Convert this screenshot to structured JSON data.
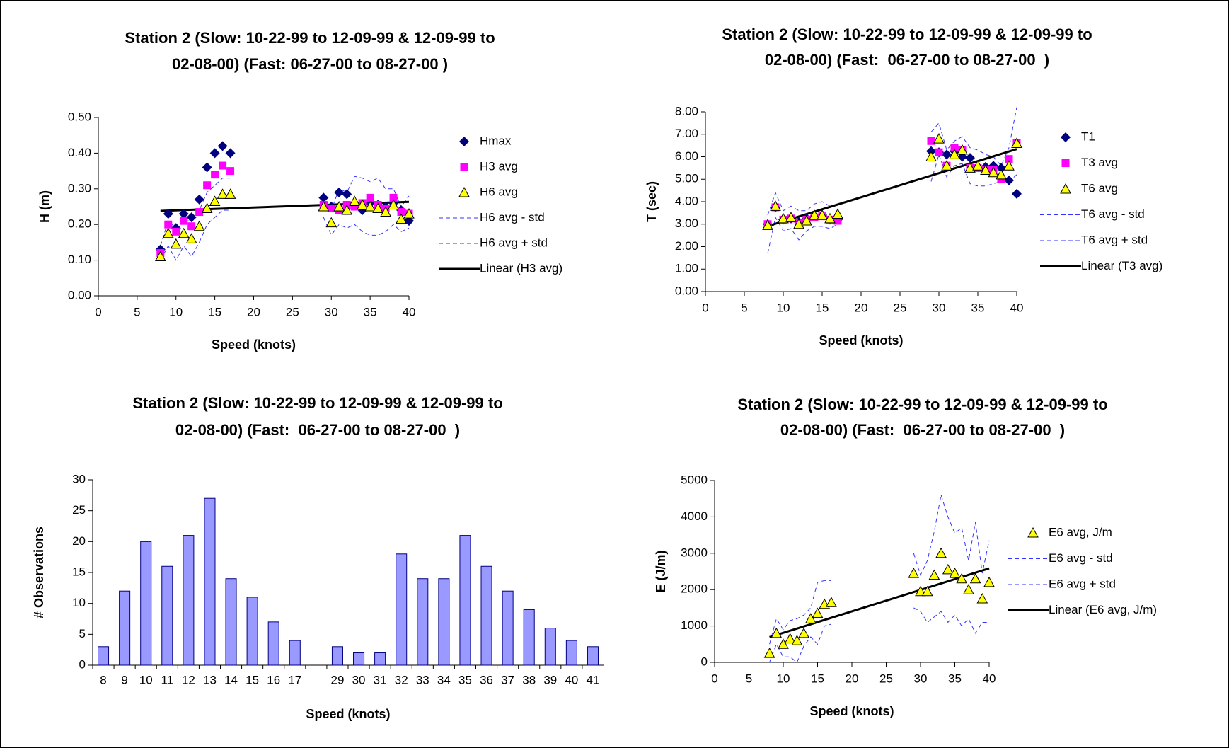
{
  "chart_data": [
    {
      "type": "scatter",
      "title": [
        "Station 2 (Slow: 10-22-99 to 12-09-99 & 12-09-99 to",
        "02-08-00) (Fast: 06-27-00 to 08-27-00 )"
      ],
      "x_label": "Speed (knots)",
      "y_label": "H (m)",
      "xlim": [
        0,
        40
      ],
      "xticks": [
        0,
        5,
        10,
        15,
        20,
        25,
        30,
        35,
        40
      ],
      "ylim": [
        0,
        0.5
      ],
      "yticks": [
        {
          "value": 0,
          "label": "0.00"
        },
        {
          "value": 0.1,
          "label": "0.10"
        },
        {
          "value": 0.2,
          "label": "0.20"
        },
        {
          "value": 0.3,
          "label": "0.30"
        },
        {
          "value": 0.4,
          "label": "0.40"
        },
        {
          "value": 0.5,
          "label": "0.50"
        }
      ],
      "x": [
        8,
        9,
        10,
        11,
        12,
        13,
        14,
        15,
        16,
        17,
        29,
        30,
        31,
        32,
        33,
        34,
        35,
        36,
        37,
        38,
        39,
        40
      ],
      "series": [
        {
          "name": "Hmax",
          "color": "#000080",
          "marker": "diamond",
          "values": [
            0.13,
            0.23,
            0.19,
            0.23,
            0.22,
            0.27,
            0.36,
            0.4,
            0.42,
            0.4,
            0.275,
            0.25,
            0.29,
            0.285,
            0.26,
            0.24,
            0.26,
            0.255,
            0.25,
            0.26,
            0.24,
            0.21
          ]
        },
        {
          "name": "H3 avg",
          "color": "#ff00ff",
          "marker": "square",
          "values": [
            0.12,
            0.2,
            0.18,
            0.21,
            0.195,
            0.235,
            0.31,
            0.34,
            0.365,
            0.35,
            0.255,
            0.245,
            0.24,
            0.255,
            0.25,
            0.26,
            0.275,
            0.255,
            0.245,
            0.275,
            0.235,
            0.23
          ]
        },
        {
          "name": "H6 avg",
          "color": "#ffff00",
          "marker": "triangle",
          "values": [
            0.11,
            0.175,
            0.145,
            0.175,
            0.16,
            0.195,
            0.245,
            0.265,
            0.285,
            0.285,
            0.25,
            0.205,
            0.25,
            0.24,
            0.265,
            0.255,
            0.25,
            0.245,
            0.235,
            0.255,
            0.215,
            0.23
          ]
        },
        {
          "name": "H6 avg - std",
          "color": "#3333ff",
          "style": "dashed",
          "values": [
            0.1,
            0.14,
            0.1,
            0.14,
            0.11,
            0.15,
            0.2,
            0.22,
            0.24,
            0.24,
            0.22,
            0.17,
            0.2,
            0.19,
            0.2,
            0.18,
            0.17,
            0.17,
            0.18,
            0.2,
            0.18,
            0.19
          ]
        },
        {
          "name": "H6 avg + std",
          "color": "#3333ff",
          "style": "dashed",
          "values": [
            0.14,
            0.21,
            0.19,
            0.21,
            0.21,
            0.24,
            0.29,
            0.31,
            0.33,
            0.33,
            0.28,
            0.24,
            0.3,
            0.29,
            0.335,
            0.33,
            0.32,
            0.33,
            0.3,
            0.3,
            0.25,
            0.28
          ]
        }
      ],
      "trendline": {
        "name": "Linear (H3 avg)",
        "series": 1,
        "color": "#000000"
      }
    },
    {
      "type": "scatter",
      "title": [
        "Station 2 (Slow: 10-22-99 to 12-09-99 & 12-09-99 to",
        "02-08-00) (Fast:  06-27-00 to 08-27-00  )"
      ],
      "x_label": "Speed (knots)",
      "y_label": "T (sec)",
      "xlim": [
        0,
        40
      ],
      "xticks": [
        0,
        5,
        10,
        15,
        20,
        25,
        30,
        35,
        40
      ],
      "ylim": [
        0,
        8
      ],
      "yticks": [
        {
          "value": 0,
          "label": "0.00"
        },
        {
          "value": 1,
          "label": "1.00"
        },
        {
          "value": 2,
          "label": "2.00"
        },
        {
          "value": 3,
          "label": "3.00"
        },
        {
          "value": 4,
          "label": "4.00"
        },
        {
          "value": 5,
          "label": "5.00"
        },
        {
          "value": 6,
          "label": "6.00"
        },
        {
          "value": 7,
          "label": "7.00"
        },
        {
          "value": 8,
          "label": "8.00"
        }
      ],
      "x": [
        8,
        9,
        10,
        11,
        12,
        13,
        14,
        15,
        16,
        17,
        29,
        30,
        31,
        32,
        33,
        34,
        35,
        36,
        37,
        38,
        39,
        40
      ],
      "series": [
        {
          "name": "T1",
          "color": "#000080",
          "marker": "diamond",
          "values": [
            3.0,
            3.75,
            3.2,
            3.25,
            3.1,
            3.25,
            3.35,
            3.4,
            3.2,
            3.2,
            6.25,
            6.2,
            6.1,
            6.25,
            6.0,
            5.95,
            5.55,
            5.55,
            5.6,
            5.5,
            4.95,
            4.35
          ]
        },
        {
          "name": "T3 avg",
          "color": "#ff00ff",
          "marker": "square",
          "values": [
            3.0,
            3.75,
            3.2,
            3.25,
            3.05,
            3.2,
            3.3,
            3.35,
            3.2,
            3.15,
            6.7,
            6.2,
            5.6,
            6.4,
            6.3,
            5.5,
            5.5,
            5.4,
            5.4,
            5.0,
            5.9,
            6.6
          ]
        },
        {
          "name": "T6 avg",
          "color": "#ffff00",
          "marker": "triangle",
          "values": [
            2.95,
            3.8,
            3.25,
            3.3,
            3.0,
            3.15,
            3.4,
            3.4,
            3.25,
            3.45,
            6.0,
            6.8,
            5.6,
            6.1,
            6.3,
            5.5,
            5.6,
            5.4,
            5.3,
            5.2,
            5.6,
            6.6
          ]
        },
        {
          "name": "T6 avg - std",
          "color": "#3333ff",
          "style": "dashed",
          "values": [
            1.7,
            3.3,
            2.7,
            2.8,
            2.3,
            2.7,
            2.9,
            2.9,
            2.8,
            3.0,
            4.9,
            6.1,
            5.1,
            5.6,
            5.7,
            4.8,
            4.7,
            4.7,
            4.8,
            4.9,
            4.9,
            5.2
          ]
        },
        {
          "name": "T6 avg + std",
          "color": "#3333ff",
          "style": "dashed",
          "values": [
            3.4,
            4.4,
            3.6,
            3.8,
            3.6,
            3.6,
            3.9,
            4.0,
            3.8,
            3.9,
            7.1,
            7.5,
            6.3,
            6.7,
            6.9,
            6.4,
            6.3,
            6.1,
            6.0,
            5.6,
            6.4,
            8.2
          ]
        }
      ],
      "trendline": {
        "name": "Linear (T3 avg)",
        "series": 1,
        "color": "#000000"
      }
    },
    {
      "type": "bar",
      "title": [
        "Station 2 (Slow: 10-22-99 to 12-09-99 & 12-09-99 to",
        "02-08-00) (Fast:  06-27-00 to 08-27-00  )"
      ],
      "x_label": "Speed (knots)",
      "y_label": "# Observations",
      "categories": [
        "8",
        "9",
        "10",
        "11",
        "12",
        "13",
        "14",
        "15",
        "16",
        "17",
        null,
        "29",
        "30",
        "31",
        "32",
        "33",
        "34",
        "35",
        "36",
        "37",
        "38",
        "39",
        "40",
        "41"
      ],
      "values": [
        3,
        12,
        20,
        16,
        21,
        27,
        14,
        11,
        7,
        4,
        null,
        3,
        2,
        2,
        18,
        14,
        14,
        21,
        16,
        12,
        9,
        6,
        4,
        3
      ],
      "color": "#9999ff",
      "ylim": [
        0,
        30
      ],
      "yticks": [
        0,
        5,
        10,
        15,
        20,
        25,
        30
      ]
    },
    {
      "type": "scatter",
      "title": [
        "Station 2 (Slow: 10-22-99 to 12-09-99 & 12-09-99 to",
        "02-08-00) (Fast:  06-27-00 to 08-27-00  )"
      ],
      "x_label": "Speed (knots)",
      "y_label": "E (J/m)",
      "xlim": [
        0,
        40
      ],
      "xticks": [
        0,
        5,
        10,
        15,
        20,
        25,
        30,
        35,
        40
      ],
      "ylim": [
        0,
        5000
      ],
      "yticks": [
        0,
        1000,
        2000,
        3000,
        4000,
        5000
      ],
      "x": [
        8,
        9,
        10,
        11,
        12,
        13,
        14,
        15,
        16,
        17,
        29,
        30,
        31,
        32,
        33,
        34,
        35,
        36,
        37,
        38,
        39,
        40
      ],
      "series": [
        {
          "name": "E6 avg, J/m",
          "color": "#ffff00",
          "marker": "triangle",
          "values": [
            250,
            800,
            500,
            650,
            600,
            800,
            1200,
            1350,
            1600,
            1650,
            2450,
            1950,
            1950,
            2400,
            3000,
            2550,
            2450,
            2300,
            2000,
            2300,
            1750,
            2200
          ]
        },
        {
          "name": "E6 avg - std",
          "color": "#3333ff",
          "style": "dashed",
          "values": [
            0,
            500,
            150,
            150,
            0,
            450,
            700,
            500,
            1000,
            1050,
            1500,
            1400,
            1100,
            1250,
            1400,
            1100,
            1300,
            1000,
            1200,
            800,
            1100,
            1100
          ]
        },
        {
          "name": "E6 avg + std",
          "color": "#3333ff",
          "style": "dashed",
          "values": [
            500,
            1200,
            900,
            1150,
            1200,
            1300,
            1500,
            2200,
            2250,
            2250,
            3000,
            2400,
            2800,
            3600,
            4600,
            4000,
            3550,
            3700,
            2800,
            3850,
            2450,
            3350
          ]
        }
      ],
      "trendline": {
        "name": "Linear (E6 avg, J/m)",
        "series": 0,
        "color": "#000000"
      }
    }
  ]
}
